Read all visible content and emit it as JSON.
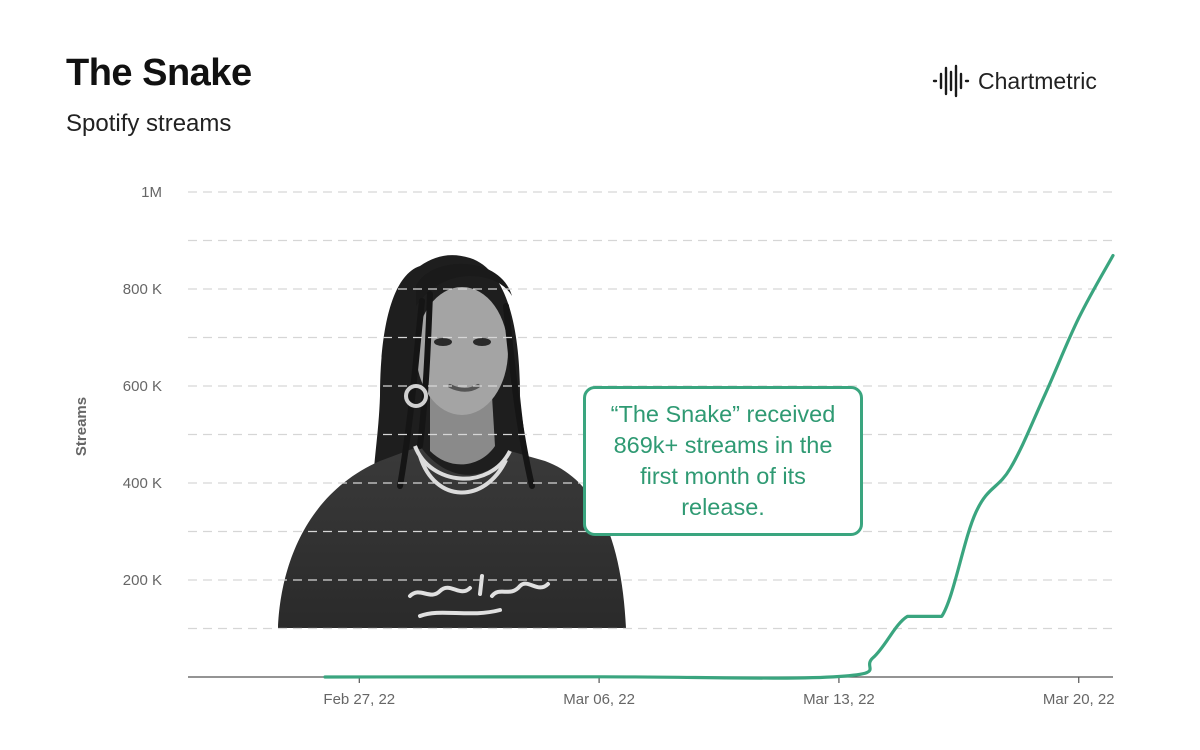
{
  "header": {
    "title": "The Snake",
    "subtitle": "Spotify streams"
  },
  "brand": {
    "name": "Chartmetric",
    "icon": "waveform-logo-icon"
  },
  "callout": {
    "text": "“The Snake” received 869k+ streams in the first month of its release."
  },
  "photo": {
    "icon": "artist-photo"
  },
  "colors": {
    "line": "#3aa57f",
    "callout_text": "#2f9a73",
    "grid": "#d6d6d6",
    "axis_text": "#666666"
  },
  "chart_data": {
    "type": "line",
    "title": "The Snake",
    "subtitle": "Spotify streams",
    "xlabel": "",
    "ylabel": "Streams",
    "ylim": [
      0,
      1000000
    ],
    "grid": true,
    "y_ticks": [
      {
        "value": 200000,
        "label": "200 K"
      },
      {
        "value": 400000,
        "label": "400 K"
      },
      {
        "value": 600000,
        "label": "600 K"
      },
      {
        "value": 800000,
        "label": "800 K"
      },
      {
        "value": 1000000,
        "label": "1M"
      }
    ],
    "x_ticks": [
      {
        "date": "2022-02-27",
        "label": "Feb 27, 22"
      },
      {
        "date": "2022-03-06",
        "label": "Mar 06, 22"
      },
      {
        "date": "2022-03-13",
        "label": "Mar 13, 22"
      },
      {
        "date": "2022-03-20",
        "label": "Mar 20, 22"
      }
    ],
    "x_range": [
      "2022-02-22",
      "2022-03-21"
    ],
    "series": [
      {
        "values": [
          {
            "date": "2022-02-26",
            "value": 0
          },
          {
            "date": "2022-03-06",
            "value": 500
          },
          {
            "date": "2022-03-13",
            "value": 1000
          },
          {
            "date": "2022-03-14",
            "value": 40000
          },
          {
            "date": "2022-03-15",
            "value": 125000
          },
          {
            "date": "2022-03-16",
            "value": 125000
          },
          {
            "date": "2022-03-17",
            "value": 340000
          },
          {
            "date": "2022-03-18",
            "value": 430000
          },
          {
            "date": "2022-03-19",
            "value": 580000
          },
          {
            "date": "2022-03-20",
            "value": 740000
          },
          {
            "date": "2022-03-21",
            "value": 869000
          }
        ]
      }
    ]
  }
}
